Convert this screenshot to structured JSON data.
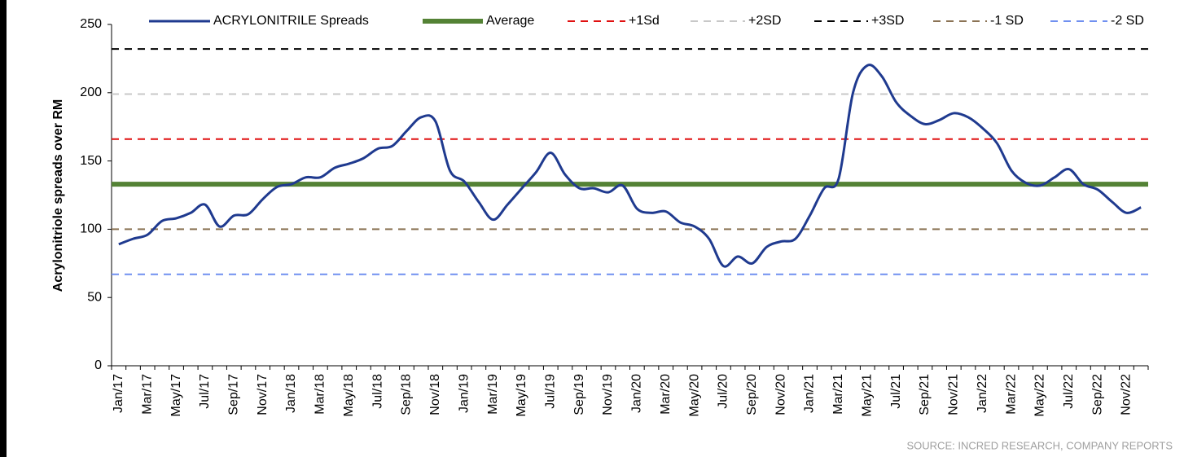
{
  "chart_data": {
    "type": "line",
    "y_axis_label": "Acrylonitriole spreads over RM",
    "source": "SOURCE: INCRED RESEARCH, COMPANY REPORTS",
    "categories": [
      "Jan/17",
      null,
      "Mar/17",
      null,
      "May/17",
      null,
      "Jul/17",
      null,
      "Sep/17",
      null,
      "Nov/17",
      null,
      "Jan/18",
      null,
      "Mar/18",
      null,
      "May/18",
      null,
      "Jul/18",
      null,
      "Sep/18",
      null,
      "Nov/18",
      null,
      "Jan/19",
      null,
      "Mar/19",
      null,
      "May/19",
      null,
      "Jul/19",
      null,
      "Sep/19",
      null,
      "Nov/19",
      null,
      "Jan/20",
      null,
      "Mar/20",
      null,
      "May/20",
      null,
      "Jul/20",
      null,
      "Sep/20",
      null,
      "Nov/20",
      null,
      "Jan/21",
      null,
      "Mar/21",
      null,
      "May/21",
      null,
      "Jul/21",
      null,
      "Sep/21",
      null,
      "Nov/21",
      null,
      "Jan/22",
      null,
      "Mar/22",
      null,
      "May/22",
      null,
      "Jul/22",
      null,
      "Sep/22",
      null,
      "Nov/22",
      null
    ],
    "series": [
      {
        "name": "ACRYLONITRILE  Spreads",
        "color": "#1f3a8f",
        "values": [
          89,
          93,
          96,
          106,
          108,
          112,
          118,
          102,
          110,
          111,
          122,
          131,
          133,
          138,
          138,
          145,
          148,
          152,
          159,
          161,
          172,
          182,
          179,
          143,
          135,
          120,
          107,
          118,
          130,
          142,
          156,
          140,
          130,
          130,
          127,
          132,
          115,
          112,
          113,
          105,
          102,
          93,
          73,
          80,
          75,
          87,
          91,
          93,
          110,
          130,
          137,
          200,
          220,
          212,
          193,
          183,
          177,
          180,
          185,
          182,
          174,
          163,
          143,
          134,
          132,
          138,
          144,
          133,
          129,
          120,
          112,
          116
        ]
      }
    ],
    "reference_lines": [
      {
        "name": "Average",
        "value": 133,
        "color": "#548235",
        "dashed": false
      },
      {
        "name": "+1Sd",
        "value": 166,
        "color": "#e01010",
        "dashed": true
      },
      {
        "name": "+2SD",
        "value": 199,
        "color": "#c8c8c8",
        "dashed": true
      },
      {
        "name": "+3SD",
        "value": 232,
        "color": "#000000",
        "dashed": true
      },
      {
        "name": "-1 SD",
        "value": 100,
        "color": "#8b7355",
        "dashed": true
      },
      {
        "name": "-2 SD",
        "value": 67,
        "color": "#7090f0",
        "dashed": true
      }
    ],
    "ylim": [
      0,
      250
    ],
    "yticks": [
      0,
      50,
      100,
      150,
      200,
      250
    ]
  }
}
